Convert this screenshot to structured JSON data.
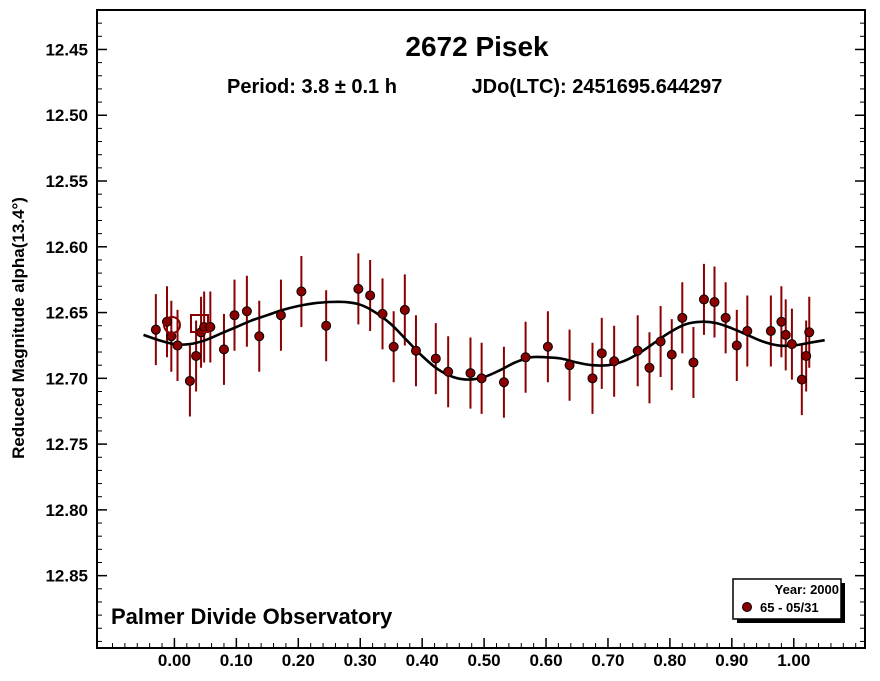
{
  "chart_data": {
    "type": "scatter",
    "title": "2672 Pisek",
    "subtitle_period": "Period: 3.8 ± 0.1 h",
    "subtitle_epoch": "JDo(LTC): 2451695.644297",
    "ylabel": "Reduced Magnitude alpha(13.4°)",
    "xlabel": "",
    "annotation": "Palmer Divide Observatory",
    "legend": {
      "header": "Year: 2000",
      "entries": [
        {
          "label": "65 - 05/31",
          "color": "#8b0000"
        }
      ],
      "placement": "bottom-right"
    },
    "xlim": [
      -0.125,
      1.115
    ],
    "ylim": [
      12.42,
      12.905
    ],
    "y_inverted": true,
    "x_ticks": [
      "0.00",
      "0.10",
      "0.20",
      "0.30",
      "0.40",
      "0.50",
      "0.60",
      "0.70",
      "0.80",
      "0.90",
      "1.00"
    ],
    "y_ticks": [
      "12.45",
      "12.50",
      "12.55",
      "12.60",
      "12.65",
      "12.70",
      "12.75",
      "12.80",
      "12.85"
    ],
    "grid": false,
    "marker_color": "#8b0000",
    "error_bar_color": "#8b0000",
    "fit_color": "#000000",
    "series": [
      {
        "name": "65 - 05/31",
        "x": [
          -0.03,
          -0.012,
          -0.005,
          0.005,
          0.025,
          0.035,
          0.043,
          0.048,
          0.058,
          0.08,
          0.097,
          0.117,
          0.137,
          0.172,
          0.205,
          0.245,
          0.297,
          0.316,
          0.336,
          0.354,
          0.372,
          0.39,
          0.422,
          0.442,
          0.478,
          0.496,
          0.532,
          0.567,
          0.603,
          0.638,
          0.675,
          0.69,
          0.71,
          0.748,
          0.767,
          0.785,
          0.803,
          0.82,
          0.838,
          0.855,
          0.872,
          0.89,
          0.908,
          0.925,
          0.963,
          0.98,
          0.987,
          0.997,
          1.013,
          1.02,
          1.025
        ],
        "y": [
          12.663,
          12.657,
          12.668,
          12.675,
          12.702,
          12.683,
          12.665,
          12.661,
          12.661,
          12.678,
          12.652,
          12.649,
          12.668,
          12.652,
          12.634,
          12.66,
          12.632,
          12.637,
          12.651,
          12.676,
          12.648,
          12.679,
          12.685,
          12.695,
          12.696,
          12.7,
          12.703,
          12.684,
          12.676,
          12.69,
          12.7,
          12.681,
          12.687,
          12.679,
          12.692,
          12.672,
          12.682,
          12.654,
          12.688,
          12.64,
          12.642,
          12.654,
          12.675,
          12.664,
          12.664,
          12.657,
          12.667,
          12.674,
          12.701,
          12.683,
          12.665
        ],
        "err": 0.027
      }
    ],
    "fit_curve": {
      "x": [
        -0.05,
        -0.025,
        0.0,
        0.025,
        0.05,
        0.075,
        0.1,
        0.125,
        0.15,
        0.175,
        0.2,
        0.225,
        0.25,
        0.275,
        0.3,
        0.325,
        0.35,
        0.375,
        0.4,
        0.425,
        0.45,
        0.475,
        0.5,
        0.525,
        0.55,
        0.575,
        0.6,
        0.625,
        0.65,
        0.675,
        0.7,
        0.725,
        0.75,
        0.775,
        0.8,
        0.825,
        0.85,
        0.875,
        0.9,
        0.925,
        0.95,
        0.975,
        1.0,
        1.025,
        1.05
      ],
      "y": [
        12.667,
        12.671,
        12.674,
        12.674,
        12.671,
        12.666,
        12.661,
        12.656,
        12.652,
        12.648,
        12.645,
        12.643,
        12.642,
        12.642,
        12.644,
        12.65,
        12.659,
        12.671,
        12.683,
        12.693,
        12.699,
        12.701,
        12.699,
        12.694,
        12.688,
        12.684,
        12.684,
        12.685,
        12.688,
        12.69,
        12.69,
        12.687,
        12.681,
        12.673,
        12.665,
        12.659,
        12.657,
        12.658,
        12.662,
        12.667,
        12.672,
        12.675,
        12.675,
        12.673,
        12.671
      ]
    }
  }
}
